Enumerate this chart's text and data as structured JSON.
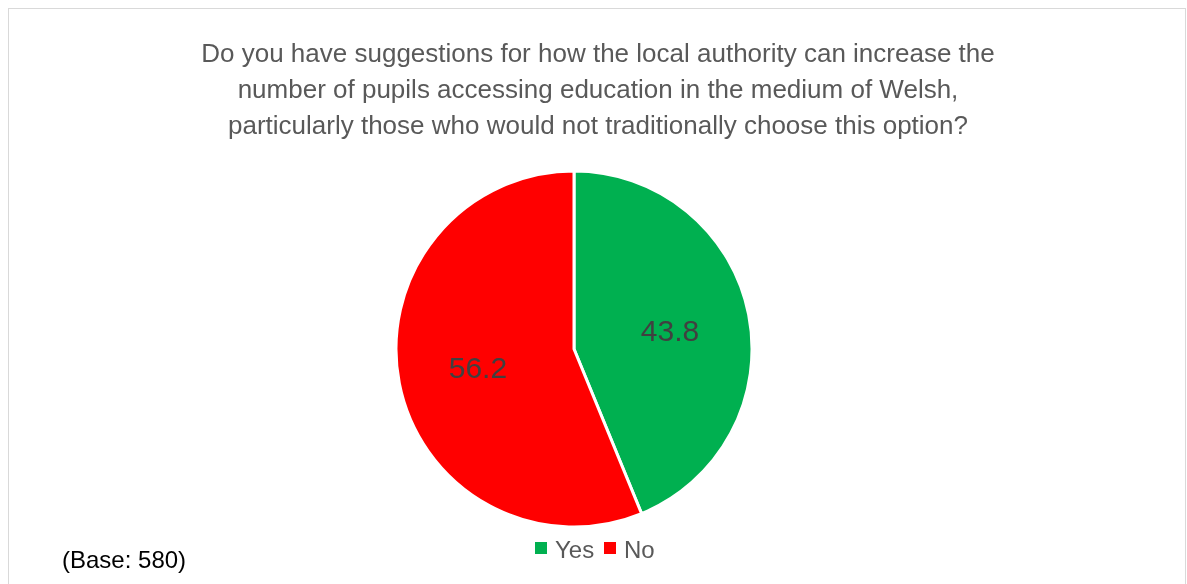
{
  "chart_data": {
    "type": "pie",
    "title": "Do you have suggestions for how the local authority can increase the number of pupils accessing education in the medium of Welsh, particularly those who would not traditionally choose this option?",
    "categories": [
      "Yes",
      "No"
    ],
    "values": [
      43.8,
      56.2
    ],
    "colors": [
      "#00b050",
      "#ff0000"
    ],
    "data_labels": true,
    "legend": "bottom",
    "annotations": [
      "(Base: 580)"
    ]
  }
}
